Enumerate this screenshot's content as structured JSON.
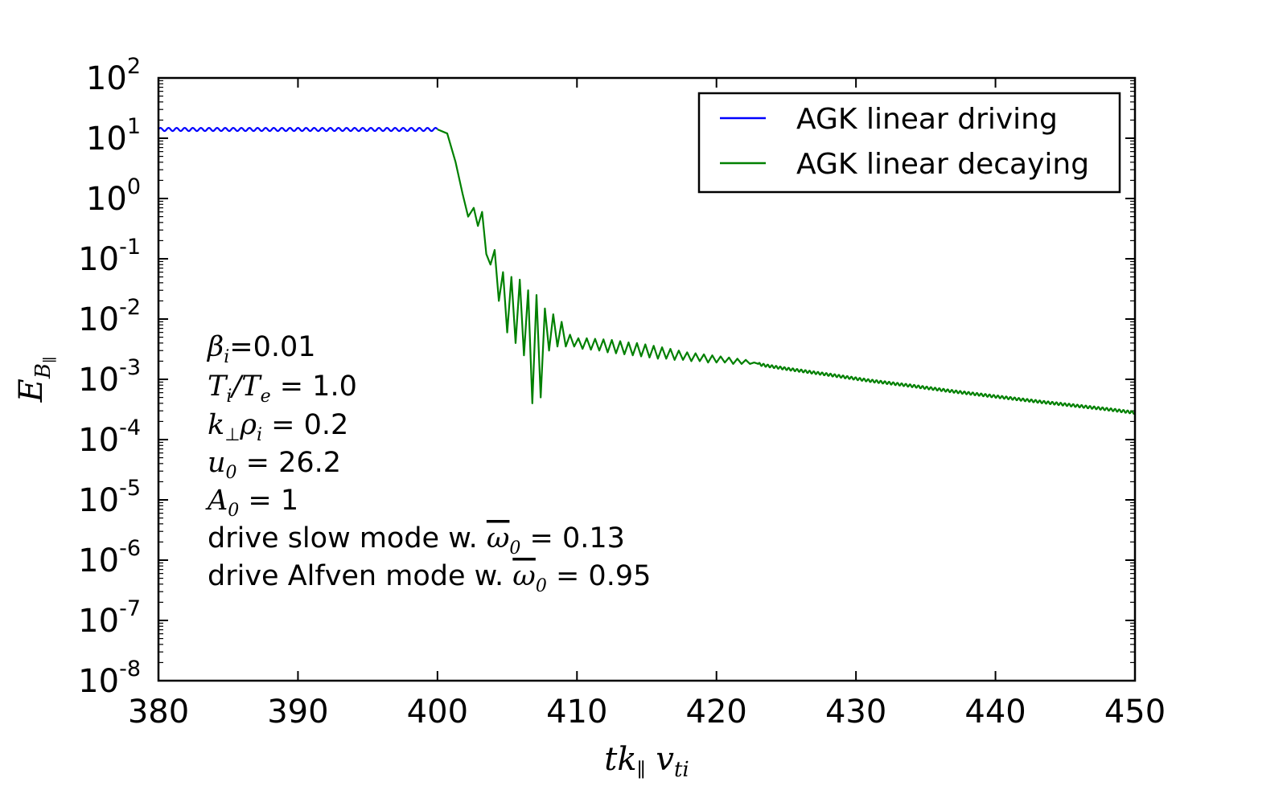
{
  "chart_data": {
    "type": "line",
    "xlabel": "tk∥ vti",
    "ylabel": "E_B∥",
    "xlim": [
      380,
      450
    ],
    "ylim": [
      1e-08,
      100
    ],
    "yscale": "log",
    "grid": false,
    "legend_position": "top-right",
    "x_ticks": [
      "380",
      "390",
      "400",
      "410",
      "420",
      "430",
      "440",
      "450"
    ],
    "y_ticks": [
      {
        "base": "10",
        "exp": "-8",
        "value": 1e-08
      },
      {
        "base": "10",
        "exp": "-7",
        "value": 1e-07
      },
      {
        "base": "10",
        "exp": "-6",
        "value": 1e-06
      },
      {
        "base": "10",
        "exp": "-5",
        "value": 1e-05
      },
      {
        "base": "10",
        "exp": "-4",
        "value": 0.0001
      },
      {
        "base": "10",
        "exp": "-3",
        "value": 0.001
      },
      {
        "base": "10",
        "exp": "-2",
        "value": 0.01
      },
      {
        "base": "10",
        "exp": "-1",
        "value": 0.1
      },
      {
        "base": "10",
        "exp": "0",
        "value": 1
      },
      {
        "base": "10",
        "exp": "1",
        "value": 10
      },
      {
        "base": "10",
        "exp": "2",
        "value": 100
      }
    ],
    "series": [
      {
        "name": "AGK linear driving",
        "color": "#0000ff",
        "oscillating": true,
        "x": [
          380,
          382,
          384,
          386,
          388,
          390,
          392,
          394,
          396,
          398,
          400
        ],
        "y": [
          14,
          14,
          14,
          14,
          14,
          14,
          14,
          14,
          14,
          14,
          14
        ]
      },
      {
        "name": "AGK linear decaying",
        "color": "#008000",
        "oscillating": false,
        "x": [
          400,
          400.7,
          401.3,
          401.8,
          402.2,
          402.6,
          402.9,
          403.2,
          403.5,
          403.8,
          404.1,
          404.4,
          404.7,
          405.0,
          405.3,
          405.6,
          405.9,
          406.2,
          406.5,
          406.8,
          407.1,
          407.4,
          407.7,
          408.0,
          408.3,
          408.6,
          408.9,
          409.2,
          409.5,
          409.8,
          410.1,
          410.4,
          410.7,
          411.0,
          411.3,
          411.6,
          411.9,
          412.2,
          412.5,
          412.8,
          413.1,
          413.4,
          413.7,
          414.0,
          414.3,
          414.6,
          414.9,
          415.2,
          415.5,
          415.8,
          416.1,
          416.4,
          416.7,
          417.0,
          417.3,
          417.6,
          417.9,
          418.2,
          418.5,
          418.8,
          419.1,
          419.4,
          419.7,
          420.0,
          420.3,
          420.6,
          420.9,
          421.2,
          421.5,
          421.8,
          422.1,
          422.4,
          422.7,
          423.0,
          423.5,
          425,
          428,
          431,
          434,
          437,
          440,
          443,
          446,
          448,
          450
        ],
        "y": [
          14,
          12,
          4,
          1.2,
          0.5,
          0.7,
          0.35,
          0.6,
          0.12,
          0.08,
          0.14,
          0.02,
          0.06,
          0.006,
          0.05,
          0.004,
          0.045,
          0.0025,
          0.03,
          0.0004,
          0.025,
          0.0005,
          0.015,
          0.003,
          0.012,
          0.0035,
          0.009,
          0.0035,
          0.0055,
          0.0035,
          0.0048,
          0.0032,
          0.0048,
          0.0031,
          0.0047,
          0.003,
          0.0046,
          0.0028,
          0.0045,
          0.0027,
          0.0043,
          0.0026,
          0.0041,
          0.0025,
          0.004,
          0.0024,
          0.0038,
          0.0023,
          0.0036,
          0.0022,
          0.0034,
          0.0022,
          0.0032,
          0.0021,
          0.003,
          0.0021,
          0.0028,
          0.002,
          0.0027,
          0.002,
          0.0026,
          0.0019,
          0.0025,
          0.0019,
          0.0024,
          0.0019,
          0.0023,
          0.0018,
          0.0022,
          0.0018,
          0.0021,
          0.0018,
          0.0019,
          0.0018,
          0.0017,
          0.0015,
          0.0012,
          0.00095,
          0.00078,
          0.00063,
          0.00052,
          0.00043,
          0.00036,
          0.00032,
          0.00028
        ]
      }
    ]
  },
  "annotations": {
    "beta": "β",
    "beta_sub": "i",
    "beta_val": "=0.01",
    "ti": "T",
    "ti_sub": "i",
    "te": "T",
    "te_sub": "e",
    "slash": "/",
    "eq": " = ",
    "temp_val": "1.0",
    "kperp": "k",
    "perp": "⊥",
    "rho": "ρ",
    "rho_sub": "i",
    "k_val": "0.2",
    "u": "u",
    "u_sub": "0",
    "u_val": "26.2",
    "a": "A",
    "a_sub": "0",
    "a_val": "1",
    "drive_slow": "drive slow mode w. ",
    "omega": "ω",
    "omega_sub": "0",
    "slow_val": "0.13",
    "drive_alfven": "drive Alfven mode w. ",
    "alfven_val": "0.95"
  }
}
